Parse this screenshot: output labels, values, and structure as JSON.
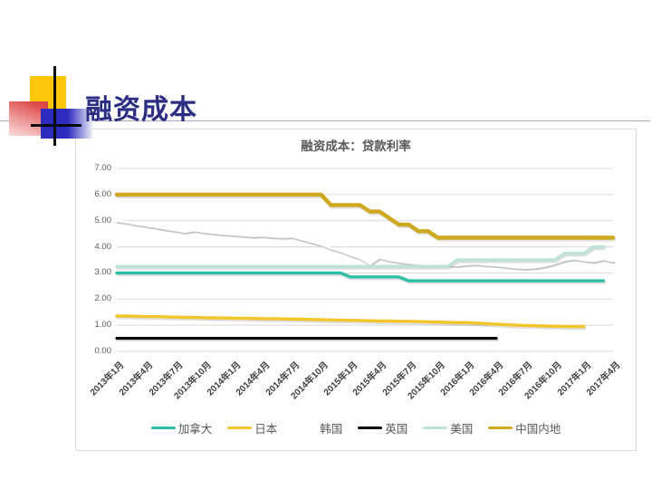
{
  "slide": {
    "title": "融资成本"
  },
  "chart": {
    "title": "融资成本：贷款利率",
    "y_axis_labels": [
      "7.00",
      "6.00",
      "5.00",
      "4.00",
      "3.00",
      "2.00",
      "1.00",
      "0.00"
    ]
  },
  "chart_data": {
    "type": "line",
    "title": "融资成本：贷款利率",
    "x_start": "2013年1月",
    "x_end": "2017年4月",
    "x_interval": "monthly",
    "x_points": 52,
    "x_tick_labels": [
      "2013年1月",
      "2013年4月",
      "2013年7月",
      "2013年10月",
      "2014年1月",
      "2014年4月",
      "2014年7月",
      "2014年10月",
      "2015年1月",
      "2015年4月",
      "2015年7月",
      "2015年10月",
      "2016年1月",
      "2016年4月",
      "2016年7月",
      "2016年10月",
      "2017年1月",
      "2017年4月"
    ],
    "x_tick_every_n_points": 3,
    "ylim": [
      0,
      7
    ],
    "y_gridline_step": 1,
    "grid": "horizontal",
    "legend_position": "bottom",
    "series": [
      {
        "name": "加拿大",
        "color": "#2cbfa5",
        "values": [
          3.0,
          3.0,
          3.0,
          3.0,
          3.0,
          3.0,
          3.0,
          3.0,
          3.0,
          3.0,
          3.0,
          3.0,
          3.0,
          3.0,
          3.0,
          3.0,
          3.0,
          3.0,
          3.0,
          3.0,
          3.0,
          3.0,
          3.0,
          3.0,
          2.85,
          2.85,
          2.85,
          2.85,
          2.85,
          2.85,
          2.7,
          2.7,
          2.7,
          2.7,
          2.7,
          2.7,
          2.7,
          2.7,
          2.7,
          2.7,
          2.7,
          2.7,
          2.7,
          2.7,
          2.7,
          2.7,
          2.7,
          2.7,
          2.7,
          2.7,
          2.7,
          null
        ]
      },
      {
        "name": "日本",
        "color": "#f2c52b",
        "values": [
          1.35,
          1.35,
          1.34,
          1.33,
          1.33,
          1.32,
          1.31,
          1.3,
          1.3,
          1.29,
          1.28,
          1.28,
          1.27,
          1.27,
          1.26,
          1.25,
          1.25,
          1.24,
          1.23,
          1.23,
          1.22,
          1.21,
          1.2,
          1.2,
          1.19,
          1.18,
          1.17,
          1.16,
          1.16,
          1.15,
          1.15,
          1.14,
          1.13,
          1.12,
          1.11,
          1.1,
          1.1,
          1.08,
          1.06,
          1.04,
          1.02,
          1.0,
          0.99,
          0.98,
          0.97,
          0.96,
          0.95,
          0.95,
          0.95,
          null,
          null,
          null
        ]
      },
      {
        "name": "韩国",
        "color": "#ffffff",
        "shadow_color": "#c2c2c2",
        "values": [
          5.0,
          4.95,
          4.88,
          4.82,
          4.76,
          4.7,
          4.64,
          4.58,
          4.64,
          4.58,
          4.54,
          4.5,
          4.48,
          4.45,
          4.42,
          4.44,
          4.4,
          4.38,
          4.4,
          4.3,
          4.2,
          4.1,
          3.95,
          3.85,
          3.7,
          3.58,
          3.35,
          3.6,
          3.5,
          3.44,
          3.4,
          3.36,
          3.34,
          3.36,
          3.32,
          3.3,
          3.34,
          3.36,
          3.32,
          3.3,
          3.26,
          3.22,
          3.2,
          3.22,
          3.28,
          3.38,
          3.5,
          3.56,
          3.5,
          3.46,
          3.54,
          3.46
        ]
      },
      {
        "name": "英国",
        "color": "#000000",
        "values": [
          0.5,
          0.5,
          0.5,
          0.5,
          0.5,
          0.5,
          0.5,
          0.5,
          0.5,
          0.5,
          0.5,
          0.5,
          0.5,
          0.5,
          0.5,
          0.5,
          0.5,
          0.5,
          0.5,
          0.5,
          0.5,
          0.5,
          0.5,
          0.5,
          0.5,
          0.5,
          0.5,
          0.5,
          0.5,
          0.5,
          0.5,
          0.5,
          0.5,
          0.5,
          0.5,
          0.5,
          0.5,
          0.5,
          0.5,
          0.5,
          null,
          null,
          null,
          null,
          null,
          null,
          null,
          null,
          null,
          null,
          null,
          null
        ]
      },
      {
        "name": "美国",
        "color": "#bce3d6",
        "values": [
          3.25,
          3.25,
          3.25,
          3.25,
          3.25,
          3.25,
          3.25,
          3.25,
          3.25,
          3.25,
          3.25,
          3.25,
          3.25,
          3.25,
          3.25,
          3.25,
          3.25,
          3.25,
          3.25,
          3.25,
          3.25,
          3.25,
          3.25,
          3.25,
          3.25,
          3.25,
          3.25,
          3.25,
          3.25,
          3.25,
          3.25,
          3.25,
          3.25,
          3.25,
          3.25,
          3.5,
          3.5,
          3.5,
          3.5,
          3.5,
          3.5,
          3.5,
          3.5,
          3.5,
          3.5,
          3.5,
          3.75,
          3.75,
          3.75,
          4.0,
          4.0,
          null
        ]
      },
      {
        "name": "中国内地",
        "color": "#d0a81e",
        "values": [
          6.0,
          6.0,
          6.0,
          6.0,
          6.0,
          6.0,
          6.0,
          6.0,
          6.0,
          6.0,
          6.0,
          6.0,
          6.0,
          6.0,
          6.0,
          6.0,
          6.0,
          6.0,
          6.0,
          6.0,
          6.0,
          6.0,
          5.6,
          5.6,
          5.6,
          5.6,
          5.35,
          5.35,
          5.1,
          4.85,
          4.85,
          4.6,
          4.6,
          4.35,
          4.35,
          4.35,
          4.35,
          4.35,
          4.35,
          4.35,
          4.35,
          4.35,
          4.35,
          4.35,
          4.35,
          4.35,
          4.35,
          4.35,
          4.35,
          4.35,
          4.35,
          4.35
        ]
      }
    ]
  }
}
